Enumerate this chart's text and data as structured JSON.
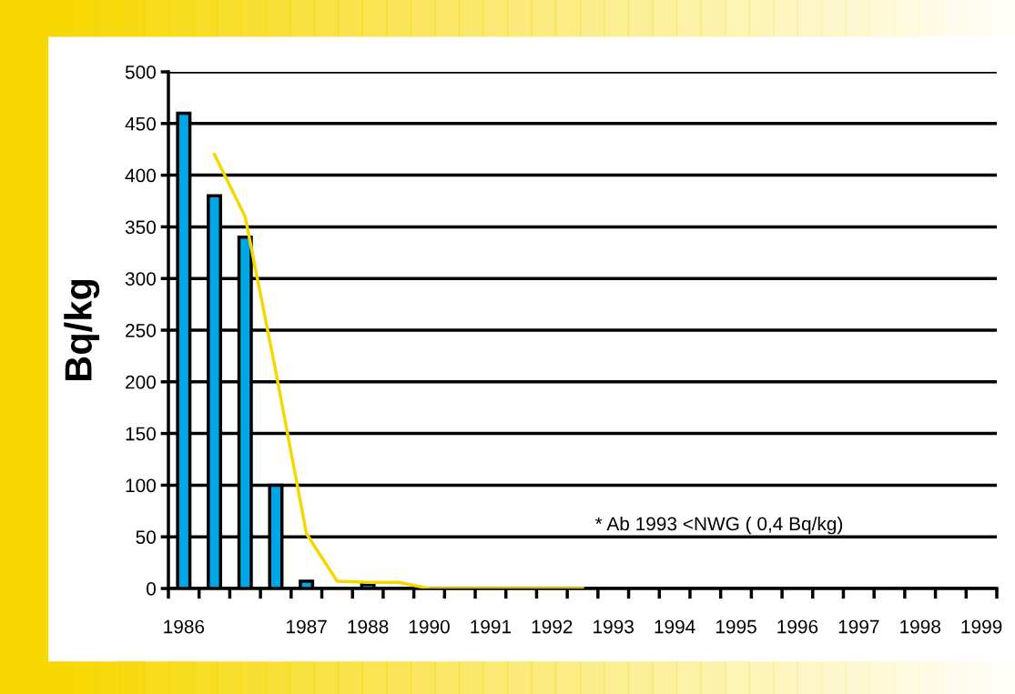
{
  "chart_data": {
    "type": "bar",
    "ylabel": "Bq/kg",
    "categories": [
      "1986",
      null,
      null,
      null,
      "1987",
      null,
      "1988",
      null,
      "1990",
      null,
      "1991",
      null,
      "1992",
      null,
      "1993",
      null,
      "1994",
      null,
      "1995",
      null,
      "1996",
      null,
      "1997",
      null,
      "1998",
      null,
      "1999"
    ],
    "series": [
      {
        "color": "#00a6e6",
        "values": [
          460,
          380,
          340,
          100,
          7,
          null,
          4,
          null,
          null,
          null,
          null,
          null,
          null,
          null,
          null,
          null,
          null,
          null,
          null,
          null,
          null,
          null,
          null,
          null,
          null,
          null,
          null
        ]
      },
      {
        "type": "line",
        "color": "#f5d800",
        "values": [
          null,
          420,
          360,
          210,
          53,
          7,
          6,
          6,
          0,
          0,
          0,
          0,
          0,
          0,
          null,
          null,
          null,
          null,
          null,
          null,
          null,
          null,
          null,
          null,
          null,
          null,
          null
        ]
      }
    ],
    "ylim": [
      0,
      500
    ],
    "yticks": [
      0,
      50,
      100,
      150,
      200,
      250,
      300,
      350,
      400,
      450,
      500
    ],
    "grid": "y",
    "marker": "none",
    "line_style": "solid",
    "annotations": [
      "* Ab 1993 <NWG ( 0,4 Bq/kg)"
    ]
  }
}
